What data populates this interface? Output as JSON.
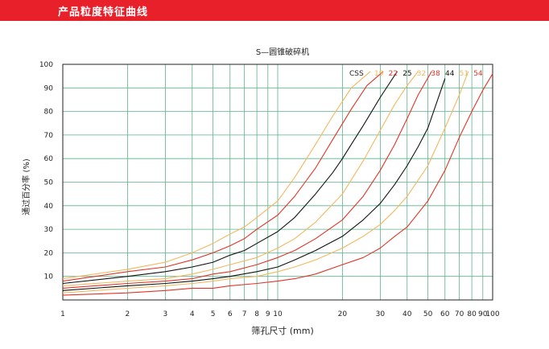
{
  "header": {
    "title": "产品粒度特征曲线"
  },
  "chart_data": {
    "type": "line",
    "title": "S—圆锥破碎机",
    "xlabel": "筛孔尺寸 (mm)",
    "ylabel": "通过百分率 (%)",
    "x_scale": "log",
    "xlim": [
      1,
      100
    ],
    "ylim": [
      0,
      100
    ],
    "x_ticks": [
      1,
      2,
      3,
      4,
      5,
      6,
      7,
      8,
      9,
      10,
      20,
      30,
      40,
      50,
      60,
      70,
      80,
      90,
      100
    ],
    "y_ticks": [
      10,
      20,
      30,
      40,
      50,
      60,
      70,
      80,
      90,
      100
    ],
    "grid": true,
    "legend_position": "top-right",
    "legend_title": "CSS",
    "series": [
      {
        "name": "19",
        "color": "#f2b860",
        "x": [
          1,
          2,
          3,
          4,
          5,
          6,
          7,
          8,
          10,
          12,
          15,
          18,
          22,
          27
        ],
        "y": [
          9,
          13,
          16,
          20,
          24,
          28,
          31,
          35,
          42,
          52,
          66,
          78,
          90,
          97
        ]
      },
      {
        "name": "22",
        "color": "#e03428",
        "x": [
          1,
          2,
          3,
          4,
          5,
          6,
          7,
          8,
          10,
          12,
          15,
          18,
          22,
          26,
          31
        ],
        "y": [
          8,
          12,
          14,
          17,
          20,
          23,
          26,
          30,
          36,
          44,
          56,
          68,
          81,
          91,
          97
        ]
      },
      {
        "name": "25",
        "color": "#111111",
        "x": [
          1,
          2,
          3,
          4,
          5,
          6,
          7,
          8,
          10,
          12,
          15,
          18,
          20,
          22,
          25,
          30,
          36
        ],
        "y": [
          7,
          10,
          12,
          14,
          16,
          19,
          21,
          24,
          29,
          35,
          45,
          54,
          60,
          66,
          74,
          86,
          97
        ]
      },
      {
        "name": "32",
        "color": "#f2b860",
        "x": [
          1,
          2,
          3,
          4,
          5,
          6,
          8,
          10,
          12,
          15,
          20,
          25,
          30,
          35,
          40,
          45
        ],
        "y": [
          6,
          8,
          9,
          11,
          13,
          15,
          18,
          22,
          26,
          33,
          45,
          59,
          72,
          83,
          91,
          97
        ]
      },
      {
        "name": "38",
        "color": "#e03428",
        "x": [
          1,
          2,
          3,
          4,
          5,
          6,
          8,
          10,
          12,
          15,
          20,
          25,
          30,
          35,
          40,
          45,
          52
        ],
        "y": [
          5,
          7,
          8,
          9,
          11,
          12,
          15,
          18,
          21,
          26,
          34,
          44,
          55,
          66,
          77,
          87,
          97
        ]
      },
      {
        "name": "44",
        "color": "#111111",
        "x": [
          1,
          2,
          3,
          4,
          5,
          6,
          8,
          10,
          12,
          15,
          20,
          25,
          30,
          35,
          40,
          45,
          50,
          60
        ],
        "y": [
          4,
          6,
          7,
          8,
          9,
          10,
          12,
          14,
          17,
          21,
          27,
          34,
          41,
          49,
          57,
          65,
          73,
          94
        ]
      },
      {
        "name": "51",
        "color": "#f2b860",
        "x": [
          1,
          2,
          3,
          4,
          5,
          6,
          8,
          10,
          12,
          15,
          20,
          25,
          30,
          35,
          40,
          50,
          60,
          70,
          77
        ],
        "y": [
          3,
          5,
          6,
          7,
          8,
          9,
          10,
          12,
          14,
          17,
          22,
          27,
          32,
          38,
          44,
          57,
          73,
          87,
          97
        ]
      },
      {
        "name": "54",
        "color": "#e03428",
        "x": [
          1,
          2,
          3,
          4,
          5,
          6,
          8,
          10,
          12,
          15,
          20,
          25,
          30,
          35,
          40,
          50,
          60,
          70,
          80,
          90,
          100
        ],
        "y": [
          2,
          3,
          4,
          5,
          5,
          6,
          7,
          8,
          9,
          11,
          15,
          18,
          22,
          27,
          31,
          42,
          55,
          69,
          80,
          89,
          96
        ]
      }
    ]
  }
}
